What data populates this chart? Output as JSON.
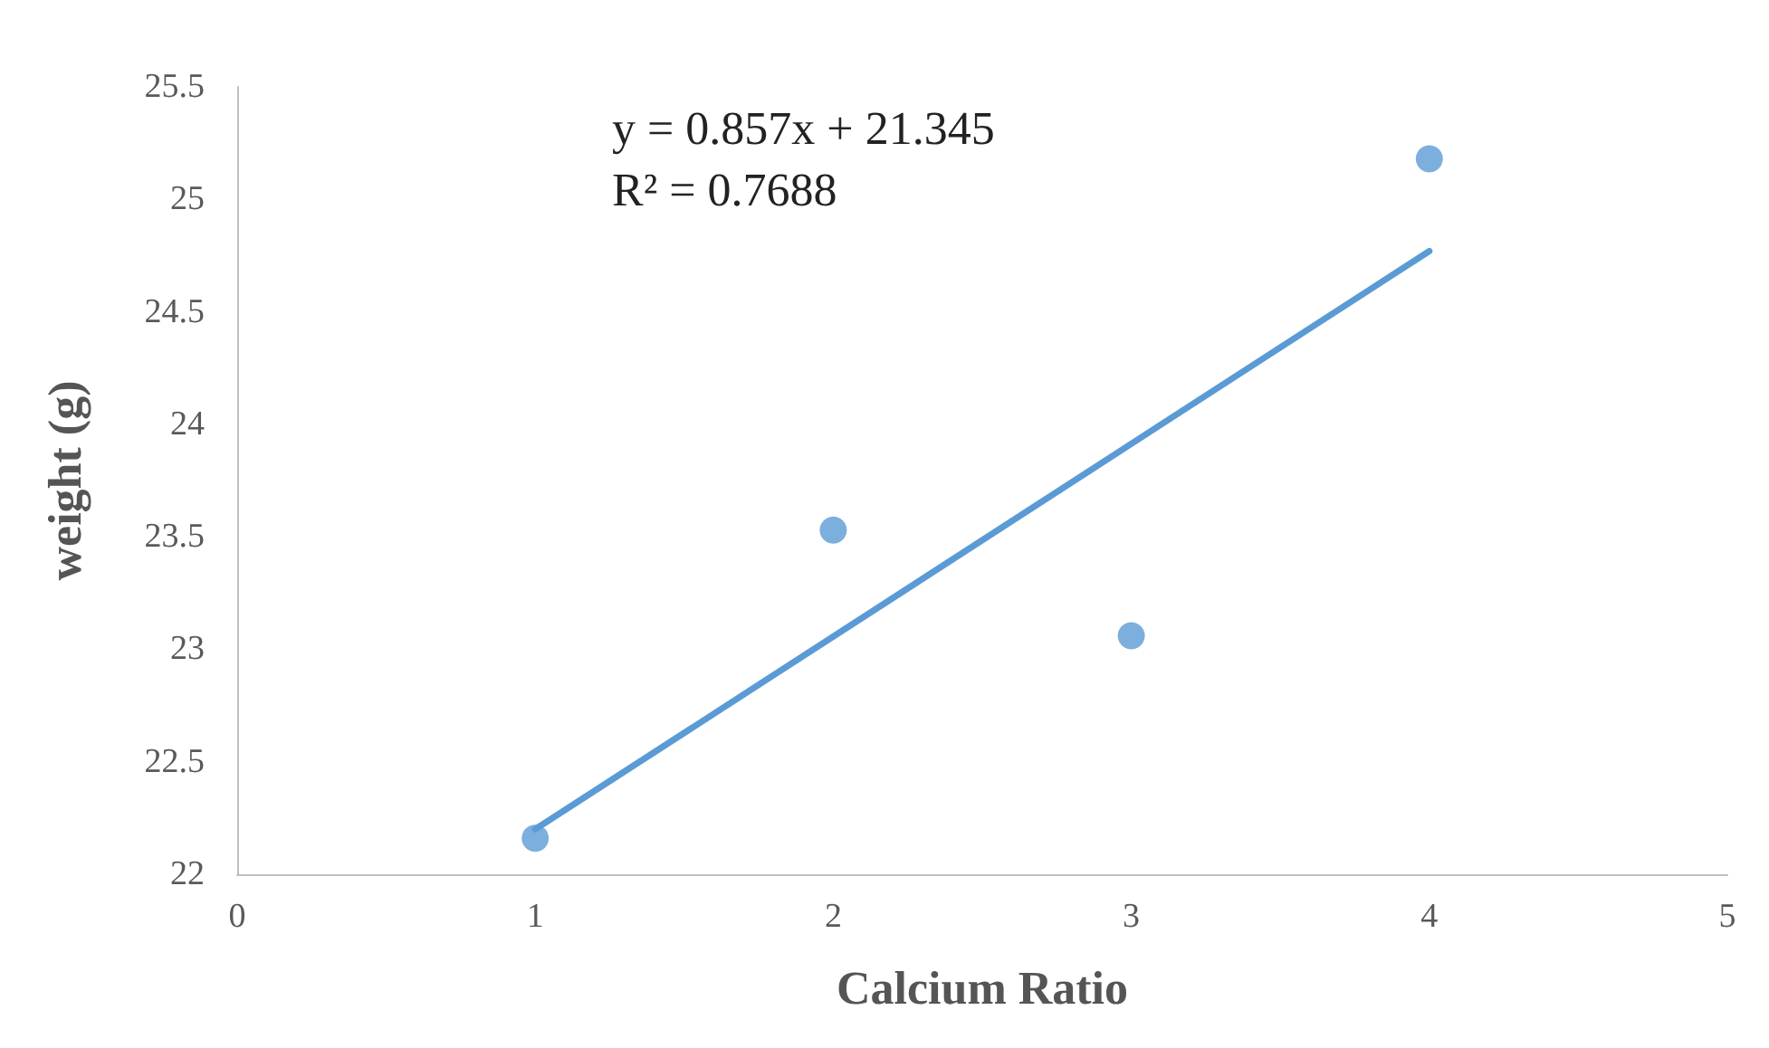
{
  "chart_data": {
    "type": "scatter",
    "xlabel": "Calcium Ratio",
    "ylabel": "weight (g)",
    "annotations": [
      "y = 0.857x + 21.345",
      "R² = 0.7688"
    ],
    "series": [
      {
        "color": "#5b9bd5",
        "x": [
          1,
          2,
          3,
          4
        ],
        "values": [
          22.16,
          23.53,
          23.06,
          25.18
        ],
        "marker": "circle"
      },
      {
        "type": "line",
        "color": "#5b9bd5",
        "x": [
          1,
          4
        ],
        "values": [
          22.2,
          24.77
        ],
        "marker": "none",
        "line_style": "solid"
      }
    ],
    "xlim": [
      0,
      5
    ],
    "xticks": [
      0,
      1,
      2,
      3,
      4,
      5
    ],
    "ylim": [
      22,
      25.5
    ],
    "yticks": [
      22,
      22.5,
      23,
      23.5,
      24,
      24.5,
      25,
      25.5
    ],
    "grid": false
  }
}
